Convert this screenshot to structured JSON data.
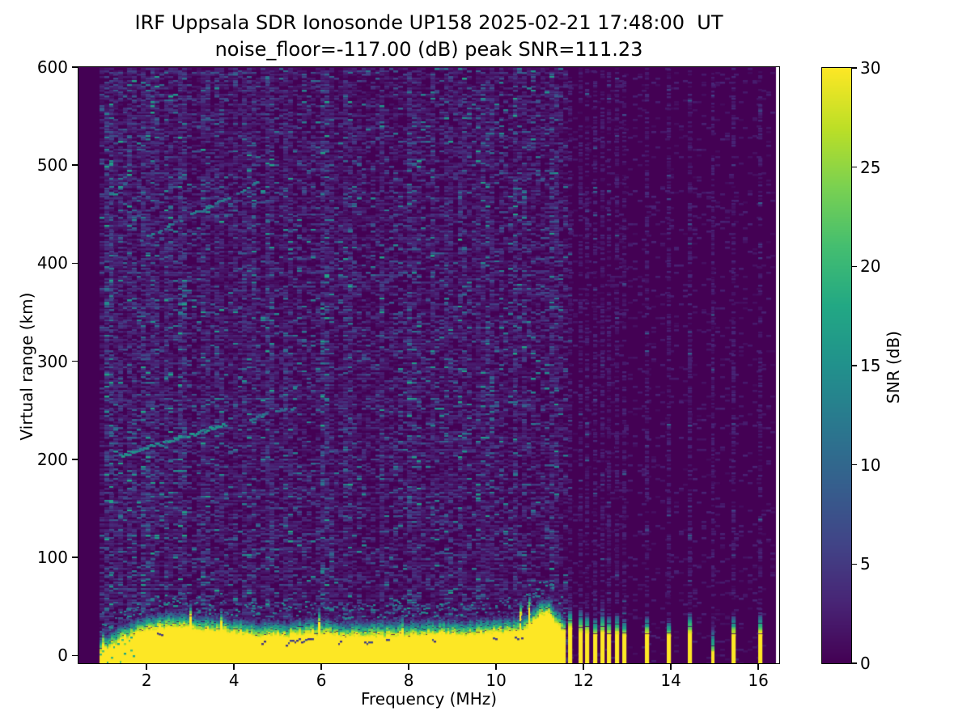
{
  "figure": {
    "kind": "matplotlib-style ionogram heatmap",
    "background": "#ffffff",
    "frame_color": "#000000"
  },
  "chart_data": {
    "type": "heatmap",
    "title": "IRF Uppsala SDR Ionosonde UP158 2025-02-21 17:48:00  UT",
    "subtitle": "noise_floor=-117.00 (dB) peak SNR=111.23",
    "xlabel": "Frequency (MHz)",
    "ylabel": "Virtual range (km)",
    "station": "IRF Uppsala SDR Ionosonde UP158",
    "datetime_ut": "2025-02-21 17:48:00 UT",
    "noise_floor_dB": -117.0,
    "peak_snr_dB": 111.23,
    "xlim": [
      0.44,
      16.48
    ],
    "ylim": [
      -8,
      600
    ],
    "xticks": [
      2,
      4,
      6,
      8,
      10,
      12,
      14,
      16
    ],
    "yticks": [
      0,
      100,
      200,
      300,
      400,
      500,
      600
    ],
    "grid": false,
    "colormap": "viridis",
    "colormap_stops": [
      [
        68,
        1,
        84
      ],
      [
        72,
        36,
        117
      ],
      [
        65,
        68,
        135
      ],
      [
        53,
        95,
        141
      ],
      [
        42,
        120,
        142
      ],
      [
        33,
        145,
        140
      ],
      [
        34,
        168,
        132
      ],
      [
        68,
        190,
        112
      ],
      [
        122,
        209,
        81
      ],
      [
        189,
        223,
        38
      ],
      [
        253,
        231,
        37
      ]
    ],
    "colorbar": {
      "label": "SNR (dB)",
      "min": 0,
      "max": 30,
      "ticks": [
        0,
        5,
        10,
        15,
        20,
        25,
        30
      ]
    },
    "data_extent_mhz": [
      0.93,
      16.35
    ],
    "sweep_band": {
      "description": "continuous saturated ground-return band (SNR >= 30 dB) from sweep start to ~11.6 MHz",
      "f_start": 0.93,
      "f_end": 11.56,
      "top_km_profile": [
        [
          0.93,
          4
        ],
        [
          1.1,
          9
        ],
        [
          1.3,
          15
        ],
        [
          1.6,
          22
        ],
        [
          2.0,
          27
        ],
        [
          2.6,
          31
        ],
        [
          3.2,
          27
        ],
        [
          3.9,
          25
        ],
        [
          4.6,
          20
        ],
        [
          5.2,
          21
        ],
        [
          5.9,
          24
        ],
        [
          6.5,
          20
        ],
        [
          7.2,
          22
        ],
        [
          8.0,
          21
        ],
        [
          8.7,
          23
        ],
        [
          9.4,
          22
        ],
        [
          10.0,
          24
        ],
        [
          10.55,
          26
        ],
        [
          10.8,
          35
        ],
        [
          11.0,
          43
        ],
        [
          11.15,
          45
        ],
        [
          11.3,
          38
        ],
        [
          11.45,
          30
        ],
        [
          11.56,
          26
        ]
      ],
      "transition_depth_km": 15
    },
    "stripes": [
      {
        "f_mhz": 11.7,
        "yellow_top_km": 28,
        "teal_top_km": 50,
        "weak": false
      },
      {
        "f_mhz": 11.93,
        "yellow_top_km": 25,
        "teal_top_km": 47,
        "weak": false
      },
      {
        "f_mhz": 12.09,
        "yellow_top_km": 24,
        "teal_top_km": 44,
        "weak": false
      },
      {
        "f_mhz": 12.26,
        "yellow_top_km": 22,
        "teal_top_km": 40,
        "weak": false
      },
      {
        "f_mhz": 12.43,
        "yellow_top_km": 24,
        "teal_top_km": 45,
        "weak": false
      },
      {
        "f_mhz": 12.59,
        "yellow_top_km": 22,
        "teal_top_km": 41,
        "weak": false
      },
      {
        "f_mhz": 12.76,
        "yellow_top_km": 23,
        "teal_top_km": 43,
        "weak": false
      },
      {
        "f_mhz": 12.93,
        "yellow_top_km": 21,
        "teal_top_km": 38,
        "weak": false
      },
      {
        "f_mhz": 13.46,
        "yellow_top_km": 22,
        "teal_top_km": 41,
        "weak": false
      },
      {
        "f_mhz": 13.96,
        "yellow_top_km": 21,
        "teal_top_km": 36,
        "weak": false
      },
      {
        "f_mhz": 14.44,
        "yellow_top_km": 24,
        "teal_top_km": 45,
        "weak": false
      },
      {
        "f_mhz": 14.96,
        "yellow_top_km": 6,
        "teal_top_km": 30,
        "weak": true
      },
      {
        "f_mhz": 15.44,
        "yellow_top_km": 22,
        "teal_top_km": 41,
        "weak": false
      },
      {
        "f_mhz": 16.04,
        "yellow_top_km": 22,
        "teal_top_km": 44,
        "weak": false
      }
    ],
    "noise_columns": [
      {
        "f_mhz": 1.08,
        "strength": 2.6
      },
      {
        "f_mhz": 1.35,
        "strength": 1.8
      },
      {
        "f_mhz": 1.6,
        "strength": 1.6
      },
      {
        "f_mhz": 1.95,
        "strength": 2.0
      },
      {
        "f_mhz": 2.15,
        "strength": 1.8
      },
      {
        "f_mhz": 2.45,
        "strength": 1.5
      },
      {
        "f_mhz": 2.75,
        "strength": 2.0
      },
      {
        "f_mhz": 3.3,
        "strength": 1.5
      },
      {
        "f_mhz": 3.6,
        "strength": 1.4
      },
      {
        "f_mhz": 4.3,
        "strength": 1.4
      },
      {
        "f_mhz": 4.75,
        "strength": 1.7
      },
      {
        "f_mhz": 5.2,
        "strength": 1.4
      },
      {
        "f_mhz": 6.05,
        "strength": 1.9
      },
      {
        "f_mhz": 6.55,
        "strength": 1.6
      },
      {
        "f_mhz": 7.35,
        "strength": 1.4
      },
      {
        "f_mhz": 8.0,
        "strength": 1.8
      },
      {
        "f_mhz": 8.5,
        "strength": 1.4
      },
      {
        "f_mhz": 9.15,
        "strength": 1.5
      },
      {
        "f_mhz": 9.8,
        "strength": 1.4
      },
      {
        "f_mhz": 10.4,
        "strength": 1.7
      }
    ],
    "oblique_streaks": [
      {
        "name": "lower-oblique-echo",
        "points_mhz_km": [
          [
            1.32,
            204
          ],
          [
            3.8,
            237
          ]
        ],
        "snr_base": 11,
        "snr_var": 6,
        "gap_prob": 0.1
      },
      {
        "name": "lower-oblique-echo-tail",
        "points_mhz_km": [
          [
            4.25,
            241
          ],
          [
            5.35,
            254
          ]
        ],
        "snr_base": 9,
        "snr_var": 4,
        "gap_prob": 0.3
      },
      {
        "name": "upper-oblique-echo",
        "points_mhz_km": [
          [
            1.85,
            425
          ],
          [
            4.5,
            483
          ]
        ],
        "snr_base": 9,
        "snr_var": 5,
        "gap_prob": 0.4
      }
    ],
    "render_seed": 1337
  }
}
